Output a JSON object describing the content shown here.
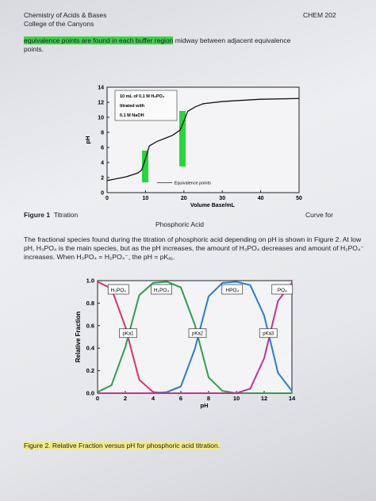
{
  "header": {
    "left": [
      "Chemistry of Acids & Bases",
      "College of the Canyons"
    ],
    "right": "CHEM 202"
  },
  "intro": {
    "highlighted": "equivalence points are found in each buffer region",
    "rest": " midway between adjacent equivalence",
    "end": "points."
  },
  "figures": [
    {
      "label": "Figure 1",
      "caption_left": "Titration",
      "caption_right": "Curve for",
      "caption_line2": "Phosphoric Acid"
    },
    {
      "caption": "Figure 2. Relative Fraction versus pH for phosphoric acid titration."
    }
  ],
  "paragraph": "The fractional species found during the titration of phosphoric acid depending on pH is shown in Figure 2. At low pH, H₃PO₄ is the main species, but as the pH increases, the amount of H₃PO₄ decreases and amount of H₂PO₄⁻ increases. When H₃PO₄ = H₂PO₄⁻, the pH = pKₐ₁.",
  "chart_data": [
    {
      "type": "line",
      "annotation": [
        "10 mL of 0.1 M H₃PO₄",
        "titrated with",
        "0.1 M NaOH"
      ],
      "legend_note": "Equivalence points",
      "xlabel": "Volume Base/mL",
      "ylabel": "pH",
      "x": [
        0,
        2,
        5,
        8,
        9,
        10,
        11,
        13,
        15,
        17,
        19,
        20,
        21,
        23,
        25,
        30,
        40,
        50
      ],
      "series": [
        {
          "color": "#111111",
          "values": [
            1.6,
            1.8,
            2.1,
            2.6,
            3.0,
            4.5,
            6.2,
            6.8,
            7.2,
            7.6,
            8.3,
            9.5,
            10.8,
            11.4,
            11.8,
            12.1,
            12.4,
            12.5
          ]
        }
      ],
      "xlim": [
        0,
        50
      ],
      "xticks": [
        0,
        10,
        20,
        30,
        40,
        50
      ],
      "ylim": [
        0,
        14
      ],
      "yticks": [
        0,
        2,
        4,
        6,
        8,
        10,
        12,
        14
      ],
      "grid": false
    },
    {
      "type": "line",
      "xlabel": "pH",
      "ylabel": "Relative Fraction",
      "annotations": [
        "pKa1",
        "pKa2",
        "pKa3"
      ],
      "x": [
        0,
        1,
        2,
        3,
        4,
        5,
        6,
        7,
        8,
        9,
        10,
        11,
        12,
        13,
        14
      ],
      "series": [
        {
          "name": "H₃PO₄",
          "color": "#d6336c",
          "values": [
            0.99,
            0.93,
            0.59,
            0.12,
            0.01,
            0,
            0,
            0,
            0,
            0,
            0,
            0,
            0,
            0,
            0
          ]
        },
        {
          "name": "H₂PO₄",
          "color": "#2e9e4f",
          "values": [
            0.01,
            0.07,
            0.41,
            0.87,
            0.98,
            0.99,
            0.94,
            0.61,
            0.14,
            0.02,
            0,
            0,
            0,
            0,
            0
          ]
        },
        {
          "name": "HPO₄",
          "color": "#2b7bd0",
          "values": [
            0,
            0,
            0,
            0,
            0,
            0.01,
            0.06,
            0.39,
            0.86,
            0.98,
            0.99,
            0.96,
            0.69,
            0.18,
            0.02
          ]
        },
        {
          "name": "PO₄",
          "color": "#c2338f",
          "values": [
            0,
            0,
            0,
            0,
            0,
            0,
            0,
            0,
            0,
            0,
            0,
            0.04,
            0.31,
            0.82,
            0.98
          ]
        }
      ],
      "xlim": [
        0,
        14
      ],
      "xticks": [
        0,
        2,
        4,
        6,
        8,
        10,
        12,
        14
      ],
      "ylim": [
        0,
        1
      ],
      "yticks": [
        {
          "value": 0,
          "label": "0.0"
        },
        0.2,
        0.4,
        0.6,
        0.8,
        {
          "value": 1,
          "label": "1.0"
        }
      ],
      "grid": false
    }
  ]
}
